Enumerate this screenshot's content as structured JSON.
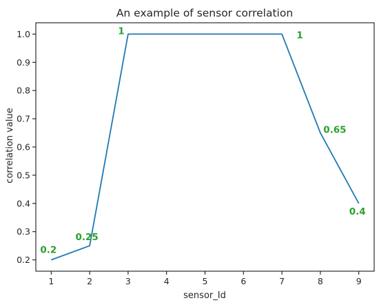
{
  "chart_data": {
    "type": "line",
    "title": "An example of sensor correlation",
    "xlabel": "sensor_Id",
    "ylabel": "correlation value",
    "x": [
      1,
      2,
      3,
      7,
      8,
      9
    ],
    "series": [
      {
        "values": [
          0.2,
          0.25,
          1.0,
          1.0,
          0.65,
          0.4
        ]
      }
    ],
    "xticks": [
      "1",
      "2",
      "3",
      "4",
      "5",
      "6",
      "7",
      "8",
      "9"
    ],
    "yticks": [
      "0.2",
      "0.3",
      "0.4",
      "0.5",
      "0.6",
      "0.7",
      "0.8",
      "0.9",
      "1.0"
    ],
    "annotations": [
      "0.2",
      "0.25",
      "1",
      "1",
      "0.65",
      "0.4"
    ],
    "xlim": [
      0.6,
      9.4
    ],
    "ylim": [
      0.16,
      1.04
    ],
    "grid": false,
    "line_color": "#1f77b4",
    "annotation_color": "#2ca02c"
  }
}
